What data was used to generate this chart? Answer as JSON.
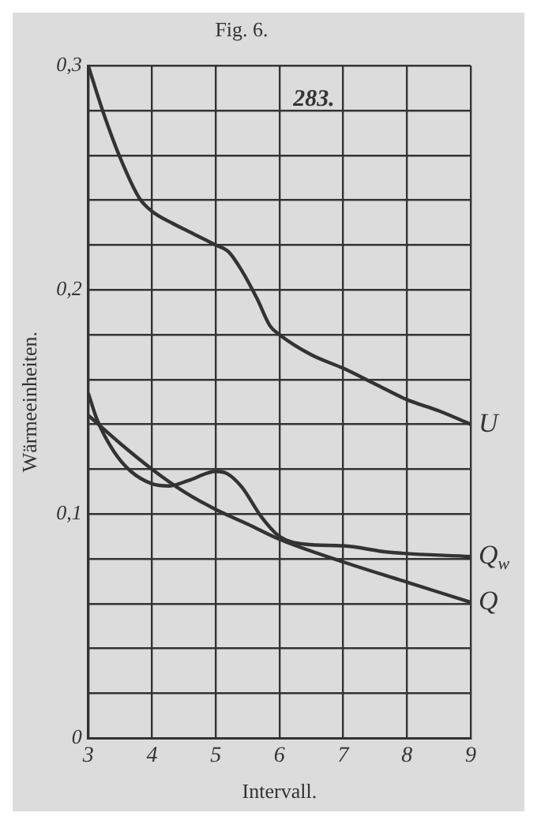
{
  "chart_data": {
    "type": "line",
    "title": "Fig. 6.",
    "xlabel": "Intervall.",
    "ylabel": "Wärmeeinheiten.",
    "annotations": [
      "283."
    ],
    "xlim": [
      3,
      9
    ],
    "xticks": [
      3,
      4,
      5,
      6,
      7,
      8,
      9
    ],
    "ylim": [
      0,
      0.3
    ],
    "yticks": [
      {
        "value": 0,
        "label": "0"
      },
      {
        "value": 0.02,
        "label": null
      },
      {
        "value": 0.04,
        "label": null
      },
      {
        "value": 0.06,
        "label": null
      },
      {
        "value": 0.08,
        "label": null
      },
      {
        "value": 0.1,
        "label": "0,1"
      },
      {
        "value": 0.12,
        "label": null
      },
      {
        "value": 0.14,
        "label": null
      },
      {
        "value": 0.16,
        "label": null
      },
      {
        "value": 0.18,
        "label": null
      },
      {
        "value": 0.2,
        "label": "0,2"
      },
      {
        "value": 0.22,
        "label": null
      },
      {
        "value": 0.24,
        "label": null
      },
      {
        "value": 0.26,
        "label": null
      },
      {
        "value": 0.28,
        "label": null
      },
      {
        "value": 0.3,
        "label": "0,3"
      }
    ],
    "grid": true,
    "legend": false,
    "marker": "none",
    "line_style": "solid",
    "series": [
      {
        "name": "U",
        "color": "#333333",
        "x": [
          3,
          3.25,
          3.5,
          3.8,
          4,
          4.3,
          4.65,
          5,
          5.2,
          5.4,
          5.65,
          5.85,
          6,
          6.5,
          7,
          7.5,
          8,
          8.5,
          9
        ],
        "values": [
          0.3,
          0.278,
          0.259,
          0.241,
          0.235,
          0.23,
          0.225,
          0.22,
          0.217,
          0.209,
          0.196,
          0.184,
          0.18,
          0.171,
          0.165,
          0.158,
          0.151,
          0.146,
          0.14
        ]
      },
      {
        "name": "Q$_{w}$",
        "color": "#333333",
        "x": [
          3,
          3.14,
          3.4,
          3.67,
          4,
          4.27,
          4.58,
          5,
          5.18,
          5.41,
          5.71,
          6,
          6.4,
          7,
          7.7,
          9
        ],
        "values": [
          0.154,
          0.142,
          0.128,
          0.119,
          0.1135,
          0.1125,
          0.115,
          0.119,
          0.118,
          0.112,
          0.099,
          0.09,
          0.0865,
          0.0858,
          0.083,
          0.081
        ]
      },
      {
        "name": "Q",
        "color": "#333333",
        "x": [
          3,
          3.5,
          4,
          4.5,
          5,
          5.5,
          6,
          7,
          8,
          9
        ],
        "values": [
          0.144,
          0.1315,
          0.12,
          0.11,
          0.102,
          0.0955,
          0.0887,
          0.0786,
          0.0696,
          0.0606
        ]
      }
    ]
  }
}
